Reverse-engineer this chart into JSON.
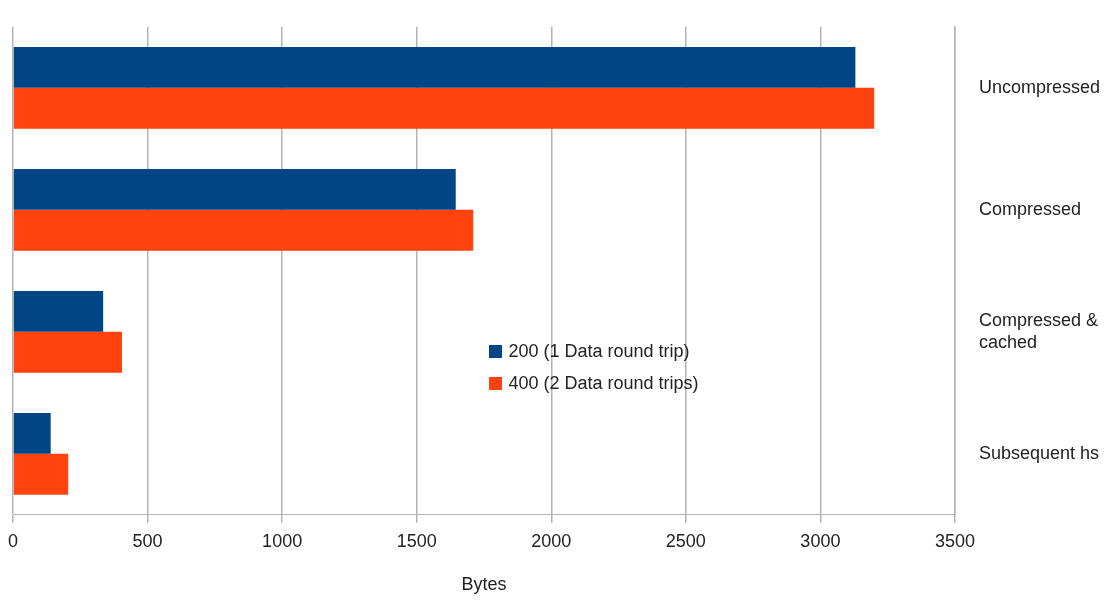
{
  "chart_data": {
    "type": "bar",
    "orientation": "horizontal",
    "xlabel": "Bytes",
    "categories": [
      "Uncompressed",
      "Compressed",
      "Compressed & cached",
      "Subsequent hs"
    ],
    "series": [
      {
        "name": "200 (1 Data round trip)",
        "color": "#004586",
        "values": [
          3130,
          1645,
          335,
          140
        ]
      },
      {
        "name": "400 (2 Data round trips)",
        "color": "#ff420e",
        "values": [
          3200,
          1710,
          405,
          205
        ]
      }
    ],
    "xlim": [
      0,
      3500
    ],
    "xticks": [
      0,
      500,
      1000,
      1500,
      2000,
      2500,
      3000,
      3500
    ],
    "grid": "x",
    "legend": "center"
  }
}
